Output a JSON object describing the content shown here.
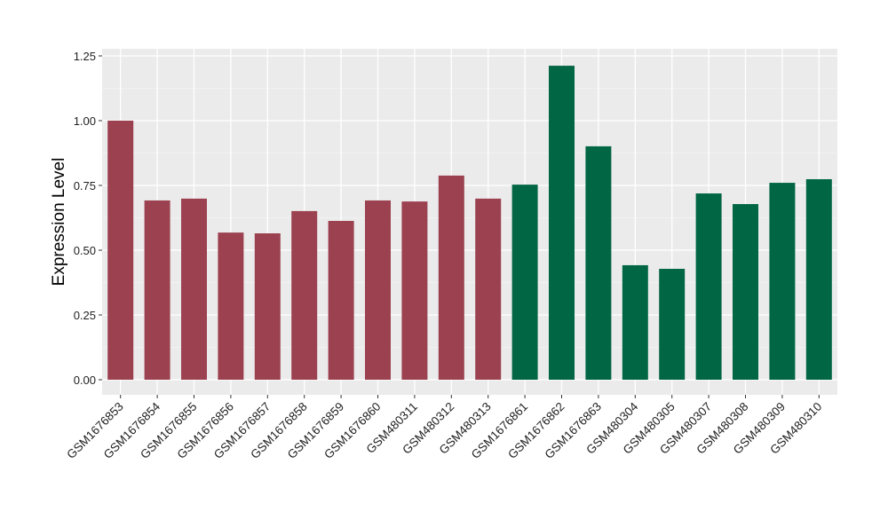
{
  "chart_data": {
    "type": "bar",
    "title": "",
    "xlabel": "",
    "ylabel": "Expression Level",
    "ylim": [
      -0.05,
      1.28
    ],
    "yticks": [
      0.0,
      0.25,
      0.5,
      0.75,
      1.0,
      1.25
    ],
    "ytick_labels": [
      "0.00",
      "0.25",
      "0.50",
      "0.75",
      "1.00",
      "1.25"
    ],
    "grid": true,
    "categories": [
      "GSM1676853",
      "GSM1676854",
      "GSM1676855",
      "GSM1676856",
      "GSM1676857",
      "GSM1676858",
      "GSM1676859",
      "GSM1676860",
      "GSM480311",
      "GSM480312",
      "GSM480313",
      "GSM1676861",
      "GSM1676862",
      "GSM1676863",
      "GSM480304",
      "GSM480305",
      "GSM480307",
      "GSM480308",
      "GSM480309",
      "GSM480310"
    ],
    "values": [
      1.0,
      0.692,
      0.699,
      0.568,
      0.565,
      0.651,
      0.613,
      0.692,
      0.688,
      0.788,
      0.699,
      0.753,
      1.212,
      0.901,
      0.442,
      0.428,
      0.719,
      0.678,
      0.76,
      0.774
    ],
    "groups": [
      0,
      0,
      0,
      0,
      0,
      0,
      0,
      0,
      0,
      0,
      0,
      1,
      1,
      1,
      1,
      1,
      1,
      1,
      1,
      1
    ],
    "group_colors": [
      "#9b4150",
      "#006644"
    ],
    "panel_color": "#ebebeb"
  }
}
